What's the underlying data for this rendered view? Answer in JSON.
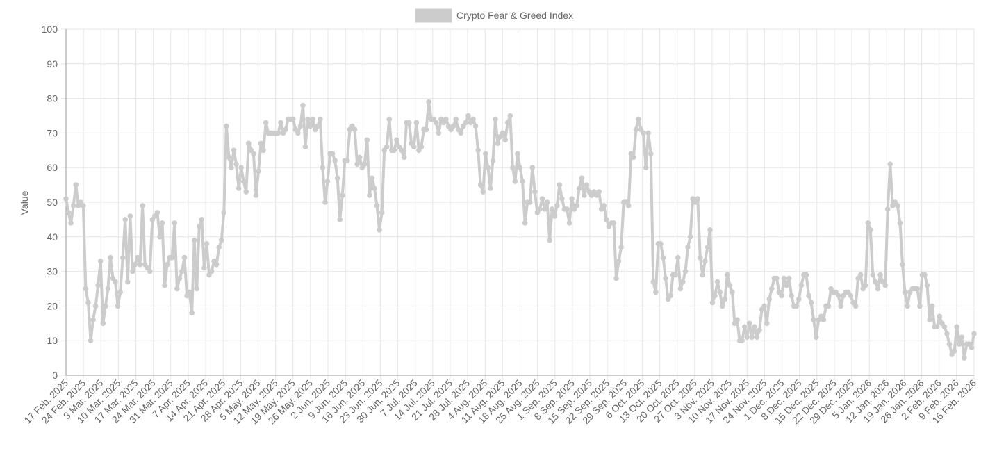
{
  "chart_data": {
    "type": "line",
    "legend": {
      "label": "Crypto Fear & Greed Index",
      "position": "top"
    },
    "ylabel": "Value",
    "xlabel": "",
    "ylim": [
      0,
      100
    ],
    "yticks": [
      0,
      10,
      20,
      30,
      40,
      50,
      60,
      70,
      80,
      90,
      100
    ],
    "grid": true,
    "colors": {
      "series": "#cccccc",
      "grid": "#e6e6e6",
      "axis": "#999999",
      "text": "#666666"
    },
    "xticks": [
      "17 Feb. 2025",
      "24 Feb. 2025",
      "3 Mar. 2025",
      "10 Mar. 2025",
      "17 Mar. 2025",
      "24 Mar. 2025",
      "31 Mar. 2025",
      "7 Apr. 2025",
      "14 Apr. 2025",
      "21 Apr. 2025",
      "28 Apr. 2025",
      "5 May. 2025",
      "12 May. 2025",
      "19 May. 2025",
      "26 May. 2025",
      "2 Jun. 2025",
      "9 Jun. 2025",
      "16 Jun. 2025",
      "23 Jun. 2025",
      "30 Jun. 2025",
      "7 Jul. 2025",
      "14 Jul. 2025",
      "21 Jul. 2025",
      "28 Jul. 2025",
      "4 Aug. 2025",
      "11 Aug. 2025",
      "18 Aug. 2025",
      "25 Aug. 2025",
      "1 Sep. 2025",
      "8 Sep. 2025",
      "15 Sep. 2025",
      "22 Sep. 2025",
      "29 Sep. 2025",
      "6 Oct. 2025",
      "13 Oct. 2025",
      "20 Oct. 2025",
      "27 Oct. 2025",
      "3 Nov. 2025",
      "10 Nov. 2025",
      "17 Nov. 2025",
      "24 Nov. 2025",
      "1 Dec. 2025",
      "8 Dec. 2025",
      "15 Dec. 2025",
      "22 Dec. 2025",
      "29 Dec. 2025",
      "5 Jan. 2026",
      "12 Jan. 2026",
      "19 Jan. 2026",
      "26 Jan. 2026",
      "2 Feb. 2026",
      "9 Feb. 2026",
      "16 Feb. 2026"
    ],
    "series": [
      {
        "name": "Crypto Fear & Greed Index",
        "values": [
          51,
          47,
          44,
          49,
          55,
          49,
          50,
          49,
          25,
          21,
          10,
          16,
          20,
          26,
          33,
          15,
          20,
          25,
          34,
          28,
          27,
          20,
          24,
          34,
          45,
          27,
          46,
          30,
          32,
          34,
          32,
          49,
          32,
          31,
          30,
          45,
          46,
          47,
          40,
          44,
          26,
          32,
          34,
          34,
          44,
          25,
          28,
          30,
          34,
          23,
          24,
          18,
          39,
          25,
          43,
          45,
          31,
          38,
          29,
          30,
          33,
          32,
          37,
          39,
          47,
          72,
          63,
          60,
          65,
          61,
          54,
          60,
          56,
          53,
          67,
          65,
          64,
          52,
          59,
          67,
          65,
          73,
          70,
          70,
          70,
          70,
          70,
          73,
          70,
          71,
          74,
          74,
          74,
          71,
          70,
          72,
          78,
          66,
          74,
          72,
          74,
          71,
          72,
          74,
          60,
          50,
          56,
          64,
          64,
          62,
          57,
          45,
          52,
          62,
          62,
          71,
          72,
          71,
          61,
          63,
          60,
          61,
          68,
          52,
          57,
          54,
          49,
          42,
          47,
          65,
          66,
          74,
          65,
          65,
          68,
          66,
          65,
          63,
          73,
          73,
          67,
          66,
          73,
          65,
          66,
          71,
          71,
          79,
          74,
          74,
          73,
          70,
          74,
          73,
          74,
          72,
          71,
          72,
          74,
          71,
          70,
          72,
          73,
          75,
          73,
          74,
          72,
          65,
          55,
          53,
          64,
          60,
          54,
          62,
          74,
          67,
          69,
          70,
          68,
          73,
          75,
          60,
          56,
          64,
          60,
          56,
          44,
          50,
          50,
          60,
          53,
          47,
          48,
          51,
          48,
          50,
          39,
          48,
          46,
          49,
          55,
          51,
          48,
          48,
          44,
          51,
          48,
          49,
          54,
          57,
          52,
          55,
          53,
          52,
          53,
          52,
          53,
          48,
          49,
          45,
          43,
          44,
          44,
          28,
          33,
          37,
          50,
          50,
          49,
          64,
          63,
          71,
          74,
          71,
          70,
          60,
          70,
          64,
          27,
          24,
          38,
          38,
          34,
          28,
          22,
          23,
          29,
          29,
          34,
          25,
          27,
          30,
          37,
          40,
          51,
          50,
          51,
          34,
          29,
          33,
          37,
          42,
          21,
          23,
          27,
          24,
          20,
          22,
          29,
          26,
          24,
          15,
          16,
          10,
          10,
          14,
          11,
          15,
          11,
          14,
          11,
          13,
          19,
          20,
          15,
          22,
          25,
          28,
          28,
          24,
          23,
          28,
          26,
          28,
          23,
          20,
          20,
          22,
          26,
          29,
          29,
          23,
          21,
          16,
          11,
          16,
          17,
          16,
          20,
          20,
          25,
          24,
          24,
          23,
          20,
          23,
          24,
          24,
          23,
          21,
          20,
          28,
          29,
          25,
          26,
          44,
          42,
          29,
          27,
          25,
          29,
          27,
          26,
          48,
          61,
          49,
          50,
          49,
          44,
          32,
          24,
          20,
          24,
          25,
          25,
          25,
          20,
          29,
          29,
          26,
          16,
          20,
          14,
          14,
          17,
          15,
          14,
          12,
          9,
          6,
          7,
          14,
          9,
          11,
          5,
          9,
          9,
          8,
          12
        ]
      }
    ]
  }
}
